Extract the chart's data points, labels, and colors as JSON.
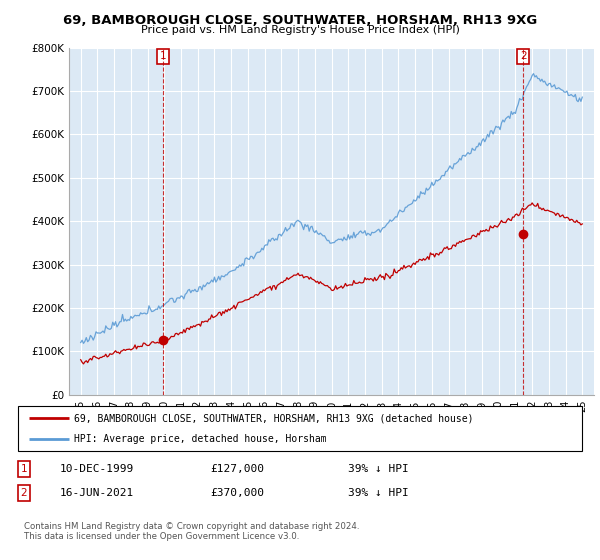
{
  "title": "69, BAMBOROUGH CLOSE, SOUTHWATER, HORSHAM, RH13 9XG",
  "subtitle": "Price paid vs. HM Land Registry's House Price Index (HPI)",
  "legend_entry1": "69, BAMBOROUGH CLOSE, SOUTHWATER, HORSHAM, RH13 9XG (detached house)",
  "legend_entry2": "HPI: Average price, detached house, Horsham",
  "transaction1_date": "10-DEC-1999",
  "transaction1_price": "£127,000",
  "transaction1_hpi": "39% ↓ HPI",
  "transaction2_date": "16-JUN-2021",
  "transaction2_price": "£370,000",
  "transaction2_hpi": "39% ↓ HPI",
  "footnote": "Contains HM Land Registry data © Crown copyright and database right 2024.\nThis data is licensed under the Open Government Licence v3.0.",
  "hpi_color": "#5b9bd5",
  "price_color": "#c00000",
  "marker_color": "#c00000",
  "background_color": "#ffffff",
  "plot_bg_color": "#dce9f5",
  "grid_color": "#ffffff",
  "ylim": [
    0,
    800000
  ],
  "yticks": [
    0,
    100000,
    200000,
    300000,
    400000,
    500000,
    600000,
    700000,
    800000
  ],
  "t1_year": 1999.917,
  "t1_price": 127000,
  "t2_year": 2021.458,
  "t2_price": 370000
}
